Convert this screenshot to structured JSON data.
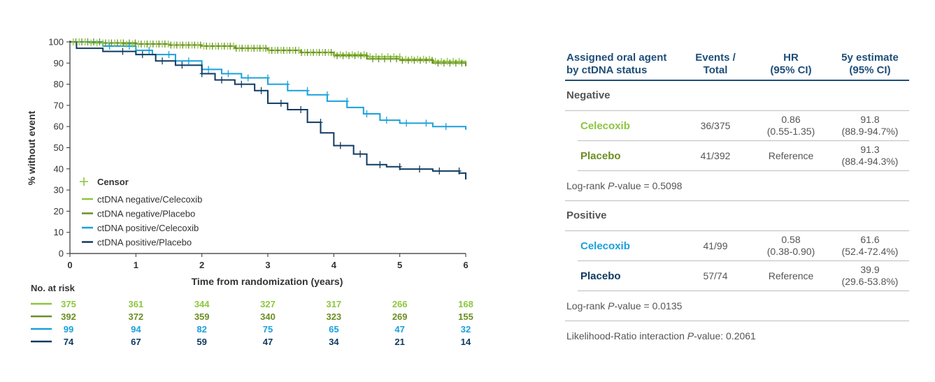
{
  "chart_data": {
    "type": "line",
    "step": true,
    "xlabel": "Time from randomization (years)",
    "ylabel": "% without event",
    "xlim": [
      0,
      6
    ],
    "ylim": [
      0,
      100
    ],
    "x_ticks": [
      0,
      1,
      2,
      3,
      4,
      5,
      6
    ],
    "y_ticks": [
      0,
      10,
      20,
      30,
      40,
      50,
      60,
      70,
      80,
      90,
      100
    ],
    "legend_position": "bottom-left",
    "censor_label": "Censor",
    "series": [
      {
        "name": "ctDNA negative/Celecoxib",
        "color": "#8cc63f",
        "x": [
          0,
          0.3,
          0.8,
          1.5,
          2.0,
          2.5,
          3.0,
          3.5,
          4.0,
          4.5,
          5.0,
          5.5,
          6.0
        ],
        "y": [
          100,
          99.5,
          99,
          98.5,
          98,
          97,
          96,
          95,
          94,
          93,
          91.8,
          90.8,
          90
        ]
      },
      {
        "name": "ctDNA negative/Placebo",
        "color": "#6b8e23",
        "x": [
          0,
          0.5,
          1.0,
          1.5,
          2.0,
          2.5,
          3.0,
          3.5,
          4.0,
          4.5,
          5.0,
          5.5,
          6.0
        ],
        "y": [
          100,
          99.5,
          99,
          98.5,
          98,
          97,
          96,
          95,
          93.5,
          92,
          91.3,
          90,
          88.5
        ]
      },
      {
        "name": "ctDNA positive/Celecoxib",
        "color": "#1aa0dc",
        "x": [
          0,
          0.5,
          1.0,
          1.25,
          1.6,
          2.0,
          2.3,
          2.6,
          3.0,
          3.3,
          3.6,
          3.9,
          4.2,
          4.45,
          4.7,
          5.0,
          5.5,
          6.0
        ],
        "y": [
          100,
          98,
          96,
          94,
          91,
          87,
          85,
          83,
          80,
          77,
          75,
          72,
          69,
          66,
          63,
          61.6,
          60,
          58.5
        ]
      },
      {
        "name": "ctDNA positive/Placebo",
        "color": "#0f3a60",
        "x": [
          0,
          0.1,
          0.5,
          1.0,
          1.3,
          1.6,
          2.0,
          2.2,
          2.5,
          2.8,
          3.0,
          3.3,
          3.6,
          3.8,
          4.0,
          4.3,
          4.5,
          4.8,
          5.0,
          5.5,
          5.9,
          6.0
        ],
        "y": [
          100,
          97,
          95.5,
          94,
          91,
          89,
          85,
          82,
          80,
          77,
          71,
          68,
          62,
          57,
          51,
          47,
          42,
          41,
          39.9,
          39,
          38,
          35
        ]
      }
    ],
    "risk_table": {
      "title": "No. at risk",
      "times": [
        0,
        1,
        2,
        3,
        4,
        5,
        6
      ],
      "rows": [
        {
          "color": "#8cc63f",
          "values": [
            375,
            361,
            344,
            327,
            317,
            266,
            168
          ]
        },
        {
          "color": "#6b8e23",
          "values": [
            392,
            372,
            359,
            340,
            323,
            269,
            155
          ]
        },
        {
          "color": "#1aa0dc",
          "values": [
            99,
            94,
            82,
            75,
            65,
            47,
            32
          ]
        },
        {
          "color": "#0f3a60",
          "values": [
            74,
            67,
            59,
            47,
            34,
            21,
            14
          ]
        }
      ]
    }
  },
  "table": {
    "headers": [
      [
        "Assigned oral agent",
        "by ctDNA status"
      ],
      [
        "Events /",
        "Total"
      ],
      [
        "HR",
        "(95% CI)"
      ],
      [
        "5y estimate",
        "(95% CI)"
      ]
    ],
    "negative": {
      "label": "Negative",
      "rows": [
        {
          "name": "Celecoxib",
          "color": "#8cc63f",
          "events": "36/375",
          "hr": "0.86",
          "hr_ci": "(0.55-1.35)",
          "est": "91.8",
          "est_ci": "(88.9-94.7%)"
        },
        {
          "name": "Placebo",
          "color": "#6b8e23",
          "events": "41/392",
          "hr": "Reference",
          "hr_ci": "",
          "est": "91.3",
          "est_ci": "(88.4-94.3%)"
        }
      ],
      "pvalue_prefix": "Log-rank ",
      "pvalue_italic": "P",
      "pvalue_suffix": "-value = 0.5098"
    },
    "positive": {
      "label": "Positive",
      "rows": [
        {
          "name": "Celecoxib",
          "color": "#1aa0dc",
          "events": "41/99",
          "hr": "0.58",
          "hr_ci": "(0.38-0.90)",
          "est": "61.6",
          "est_ci": "(52.4-72.4%)"
        },
        {
          "name": "Placebo",
          "color": "#0f3a60",
          "events": "57/74",
          "hr": "Reference",
          "hr_ci": "",
          "est": "39.9",
          "est_ci": "(29.6-53.8%)"
        }
      ],
      "pvalue_prefix": "Log-rank ",
      "pvalue_italic": "P",
      "pvalue_suffix": "-value = 0.0135"
    },
    "interaction_prefix": "Likelihood-Ratio interaction ",
    "interaction_italic": "P",
    "interaction_suffix": "-value: 0.2061"
  }
}
